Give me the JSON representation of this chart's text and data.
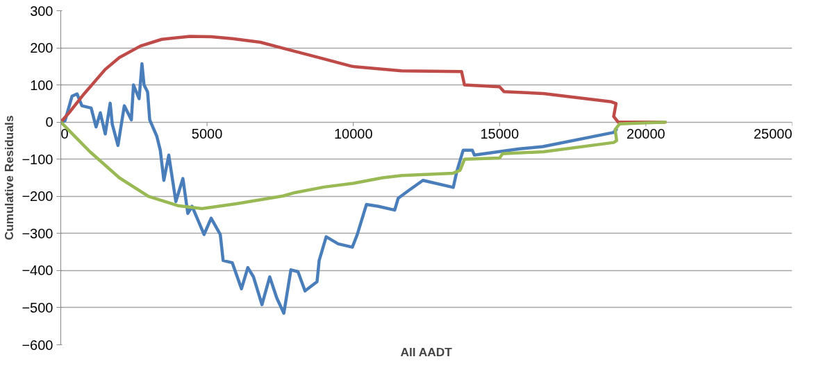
{
  "chart_data": {
    "type": "line",
    "xlabel": "All AADT",
    "ylabel": "Cumulative Residuals",
    "xlim": [
      0,
      25000
    ],
    "xticks": [
      0,
      5000,
      10000,
      15000,
      20000,
      25000
    ],
    "ylim": [
      -600,
      300
    ],
    "yticks": [
      -600,
      -500,
      -400,
      -300,
      -200,
      -100,
      0,
      100,
      200,
      300
    ],
    "grid": "y",
    "marker": "none",
    "line_style": "solid",
    "series": [
      {
        "color": "#4a7ebb",
        "x": [
          0,
          145,
          386,
          555,
          724,
          1038,
          1207,
          1351,
          1520,
          1689,
          1761,
          1955,
          2172,
          2413,
          2485,
          2678,
          2775,
          2847,
          2968,
          3040,
          3282,
          3402,
          3523,
          3692,
          3933,
          4174,
          4343,
          4488,
          4898,
          5140,
          5453,
          5550,
          5864,
          6177,
          6394,
          6587,
          6877,
          7142,
          7384,
          7625,
          7866,
          8108,
          8349,
          8759,
          8832,
          9073,
          9483,
          9966,
          10135,
          10448,
          10859,
          11414,
          11535,
          11896,
          12379,
          13416,
          13537,
          13754,
          14068,
          14140,
          14864,
          15684,
          16481,
          18894,
          18990
        ],
        "values": [
          0,
          4,
          70,
          76,
          44,
          38,
          -13,
          25,
          -32,
          51,
          -6,
          -63,
          44,
          6,
          100,
          63,
          157,
          100,
          81,
          6,
          -38,
          -76,
          -157,
          -89,
          -214,
          -152,
          -246,
          -227,
          -303,
          -259,
          -303,
          -373,
          -379,
          -449,
          -392,
          -417,
          -492,
          -417,
          -474,
          -515,
          -398,
          -403,
          -455,
          -430,
          -373,
          -309,
          -328,
          -337,
          -303,
          -222,
          -227,
          -237,
          -205,
          -184,
          -157,
          -176,
          -133,
          -76,
          -76,
          -89,
          -81,
          -72,
          -66,
          -28,
          -20
        ]
      },
      {
        "color": "#be4b48",
        "x": [
          0,
          314,
          796,
          1520,
          2003,
          2727,
          3451,
          4416,
          5140,
          5864,
          6829,
          7553,
          8760,
          9966,
          11655,
          13700,
          13800,
          15000,
          15150,
          16500,
          18800,
          18980,
          18900,
          19050,
          20660
        ],
        "values": [
          0,
          28,
          76,
          142,
          174,
          205,
          223,
          231,
          230,
          225,
          215,
          200,
          175,
          150,
          138,
          136,
          100,
          95,
          82,
          77,
          55,
          50,
          15,
          0,
          0
        ]
      },
      {
        "color": "#98b954",
        "x": [
          0,
          500,
          1000,
          2000,
          3000,
          4000,
          4826,
          6000,
          7600,
          8000,
          9000,
          10000,
          11000,
          11655,
          13400,
          13650,
          13800,
          15000,
          15100,
          16500,
          18900,
          19000,
          18950,
          19100,
          20000,
          20660
        ],
        "values": [
          0,
          -40,
          -80,
          -150,
          -200,
          -225,
          -233,
          -220,
          -199,
          -190,
          -175,
          -165,
          -150,
          -144,
          -138,
          -130,
          -100,
          -97,
          -85,
          -80,
          -55,
          -50,
          -20,
          -5,
          -2,
          0
        ]
      }
    ]
  }
}
